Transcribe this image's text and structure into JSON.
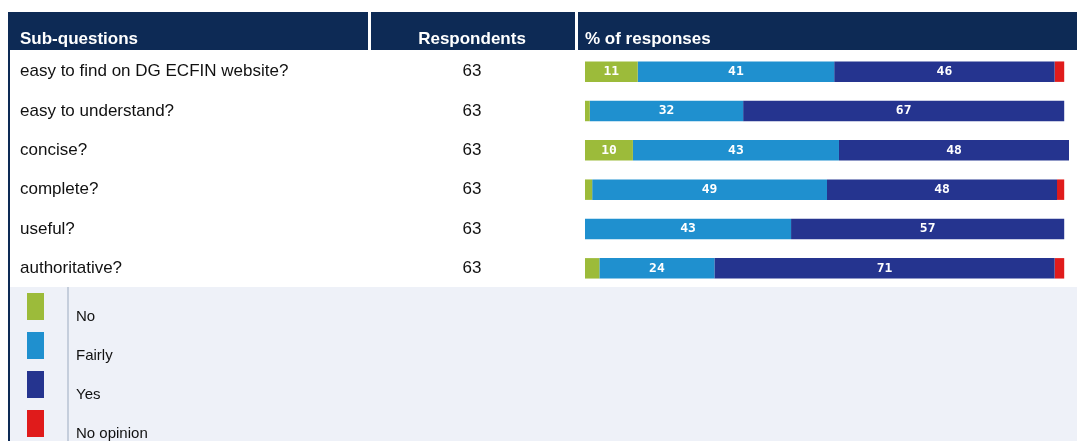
{
  "chart_data": {
    "type": "bar",
    "orientation": "horizontal",
    "stacked": true,
    "ylabel": "Sub-questions",
    "xlabel": "% of responses",
    "xlim": [
      0,
      101
    ],
    "legend": "bottom",
    "categories": [
      "easy to find on DG ECFIN website?",
      "easy to understand?",
      "concise?",
      "complete?",
      "useful?",
      "authoritative?"
    ],
    "series": [
      {
        "name": "No",
        "color": "#9cbb3a",
        "values": [
          11,
          1,
          10,
          1.5,
          null,
          3
        ],
        "value_labels": [
          "11",
          null,
          "10",
          null,
          null,
          null
        ]
      },
      {
        "name": "Fairly",
        "color": "#1f90cf",
        "values": [
          41,
          32,
          43,
          49,
          43,
          24
        ],
        "value_labels": [
          "41",
          "32",
          "43",
          "49",
          "43",
          "24"
        ]
      },
      {
        "name": "Yes",
        "color": "#25348f",
        "values": [
          46,
          67,
          48,
          48,
          57,
          71
        ],
        "value_labels": [
          "46",
          "67",
          "48",
          "48",
          "57",
          "71"
        ]
      },
      {
        "name": "No opinion",
        "color": "#e01b1b",
        "values": [
          2,
          null,
          null,
          1.5,
          null,
          2
        ],
        "value_labels": [
          null,
          null,
          null,
          null,
          null,
          null
        ]
      }
    ],
    "annotations": [
      "Respondents",
      "63",
      "63",
      "63",
      "63",
      "63",
      "63"
    ]
  }
}
